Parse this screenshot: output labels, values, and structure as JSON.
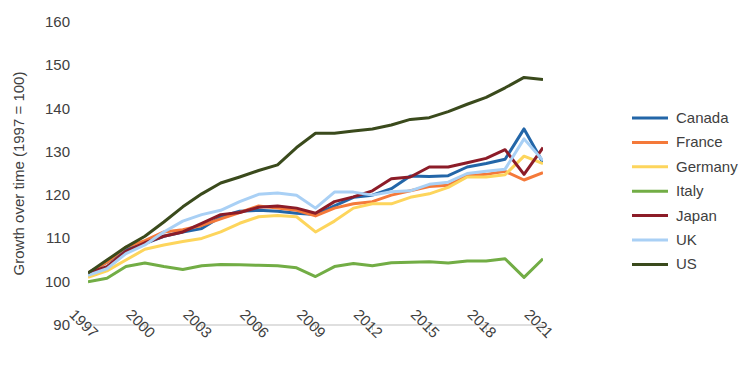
{
  "chart_data": {
    "type": "line",
    "y_label": "Growth over time (1997 = 100)",
    "x": [
      1997,
      1998,
      1999,
      2000,
      2001,
      2002,
      2003,
      2004,
      2005,
      2006,
      2007,
      2008,
      2009,
      2010,
      2011,
      2012,
      2013,
      2014,
      2015,
      2016,
      2017,
      2018,
      2019,
      2020,
      2021
    ],
    "xlim": [
      1997,
      2021
    ],
    "xticks": [
      1997,
      2000,
      2003,
      2006,
      2009,
      2012,
      2015,
      2018,
      2021
    ],
    "ylim": [
      90,
      160
    ],
    "yticks": [
      90,
      100,
      110,
      120,
      130,
      140,
      150,
      160
    ],
    "grid": false,
    "legend": "right",
    "series": [
      {
        "name": "Canada",
        "color": "#2366a8",
        "values": [
          102,
          104.5,
          107.5,
          108.8,
          110.5,
          111.5,
          112.3,
          115,
          116.3,
          116.5,
          116.3,
          115.8,
          115.5,
          117.5,
          119.5,
          120,
          121.5,
          124.4,
          124.3,
          124.5,
          126.5,
          127.3,
          128.3,
          135.3,
          127.5
        ]
      },
      {
        "name": "France",
        "color": "#f4793a",
        "values": [
          102,
          104.5,
          108,
          109.5,
          111.5,
          112,
          113,
          114.5,
          116,
          117.5,
          117,
          116.5,
          115.2,
          117,
          118,
          118.5,
          120,
          121,
          122,
          122.3,
          124.5,
          124.8,
          125.5,
          123.5,
          125.2
        ]
      },
      {
        "name": "Germany",
        "color": "#fdd55c",
        "values": [
          101,
          102.5,
          105,
          107.5,
          108.5,
          109.3,
          110,
          111.5,
          113.5,
          115,
          115.3,
          115,
          111.5,
          114,
          117,
          118,
          118,
          119.5,
          120.3,
          121.8,
          124.2,
          124.2,
          124.7,
          129,
          127.3
        ]
      },
      {
        "name": "Italy",
        "color": "#72ad45",
        "values": [
          100,
          100.8,
          103.5,
          104.3,
          103.5,
          102.8,
          103.7,
          104,
          103.9,
          103.8,
          103.7,
          103.2,
          101.2,
          103.5,
          104.2,
          103.7,
          104.4,
          104.5,
          104.6,
          104.3,
          104.8,
          104.8,
          105.3,
          101,
          105.3
        ]
      },
      {
        "name": "Japan",
        "color": "#8c1c28",
        "values": [
          102,
          103.5,
          107,
          109,
          110.5,
          111.5,
          113.5,
          115.5,
          116,
          117.2,
          117.5,
          117,
          115.8,
          118.5,
          119.6,
          121,
          123.8,
          124.2,
          126.5,
          126.5,
          127.5,
          128.5,
          130.5,
          124.8,
          131
        ]
      },
      {
        "name": "UK",
        "color": "#a9d0f5",
        "values": [
          101.5,
          103,
          106.5,
          108.5,
          111.5,
          114,
          115.5,
          116.5,
          118.5,
          120.2,
          120.5,
          120,
          117,
          120.7,
          120.7,
          120,
          120.8,
          121,
          122.5,
          123,
          125,
          125.5,
          126,
          133,
          128
        ]
      },
      {
        "name": "US",
        "color": "#3a4a1c",
        "values": [
          102,
          105,
          108,
          110.5,
          113.8,
          117.3,
          120.3,
          122.8,
          124.2,
          125.7,
          127,
          131,
          134.3,
          134.3,
          134.8,
          135.3,
          136.2,
          137.5,
          137.9,
          139.3,
          141,
          142.6,
          144.8,
          147.2,
          146.7
        ]
      }
    ]
  }
}
